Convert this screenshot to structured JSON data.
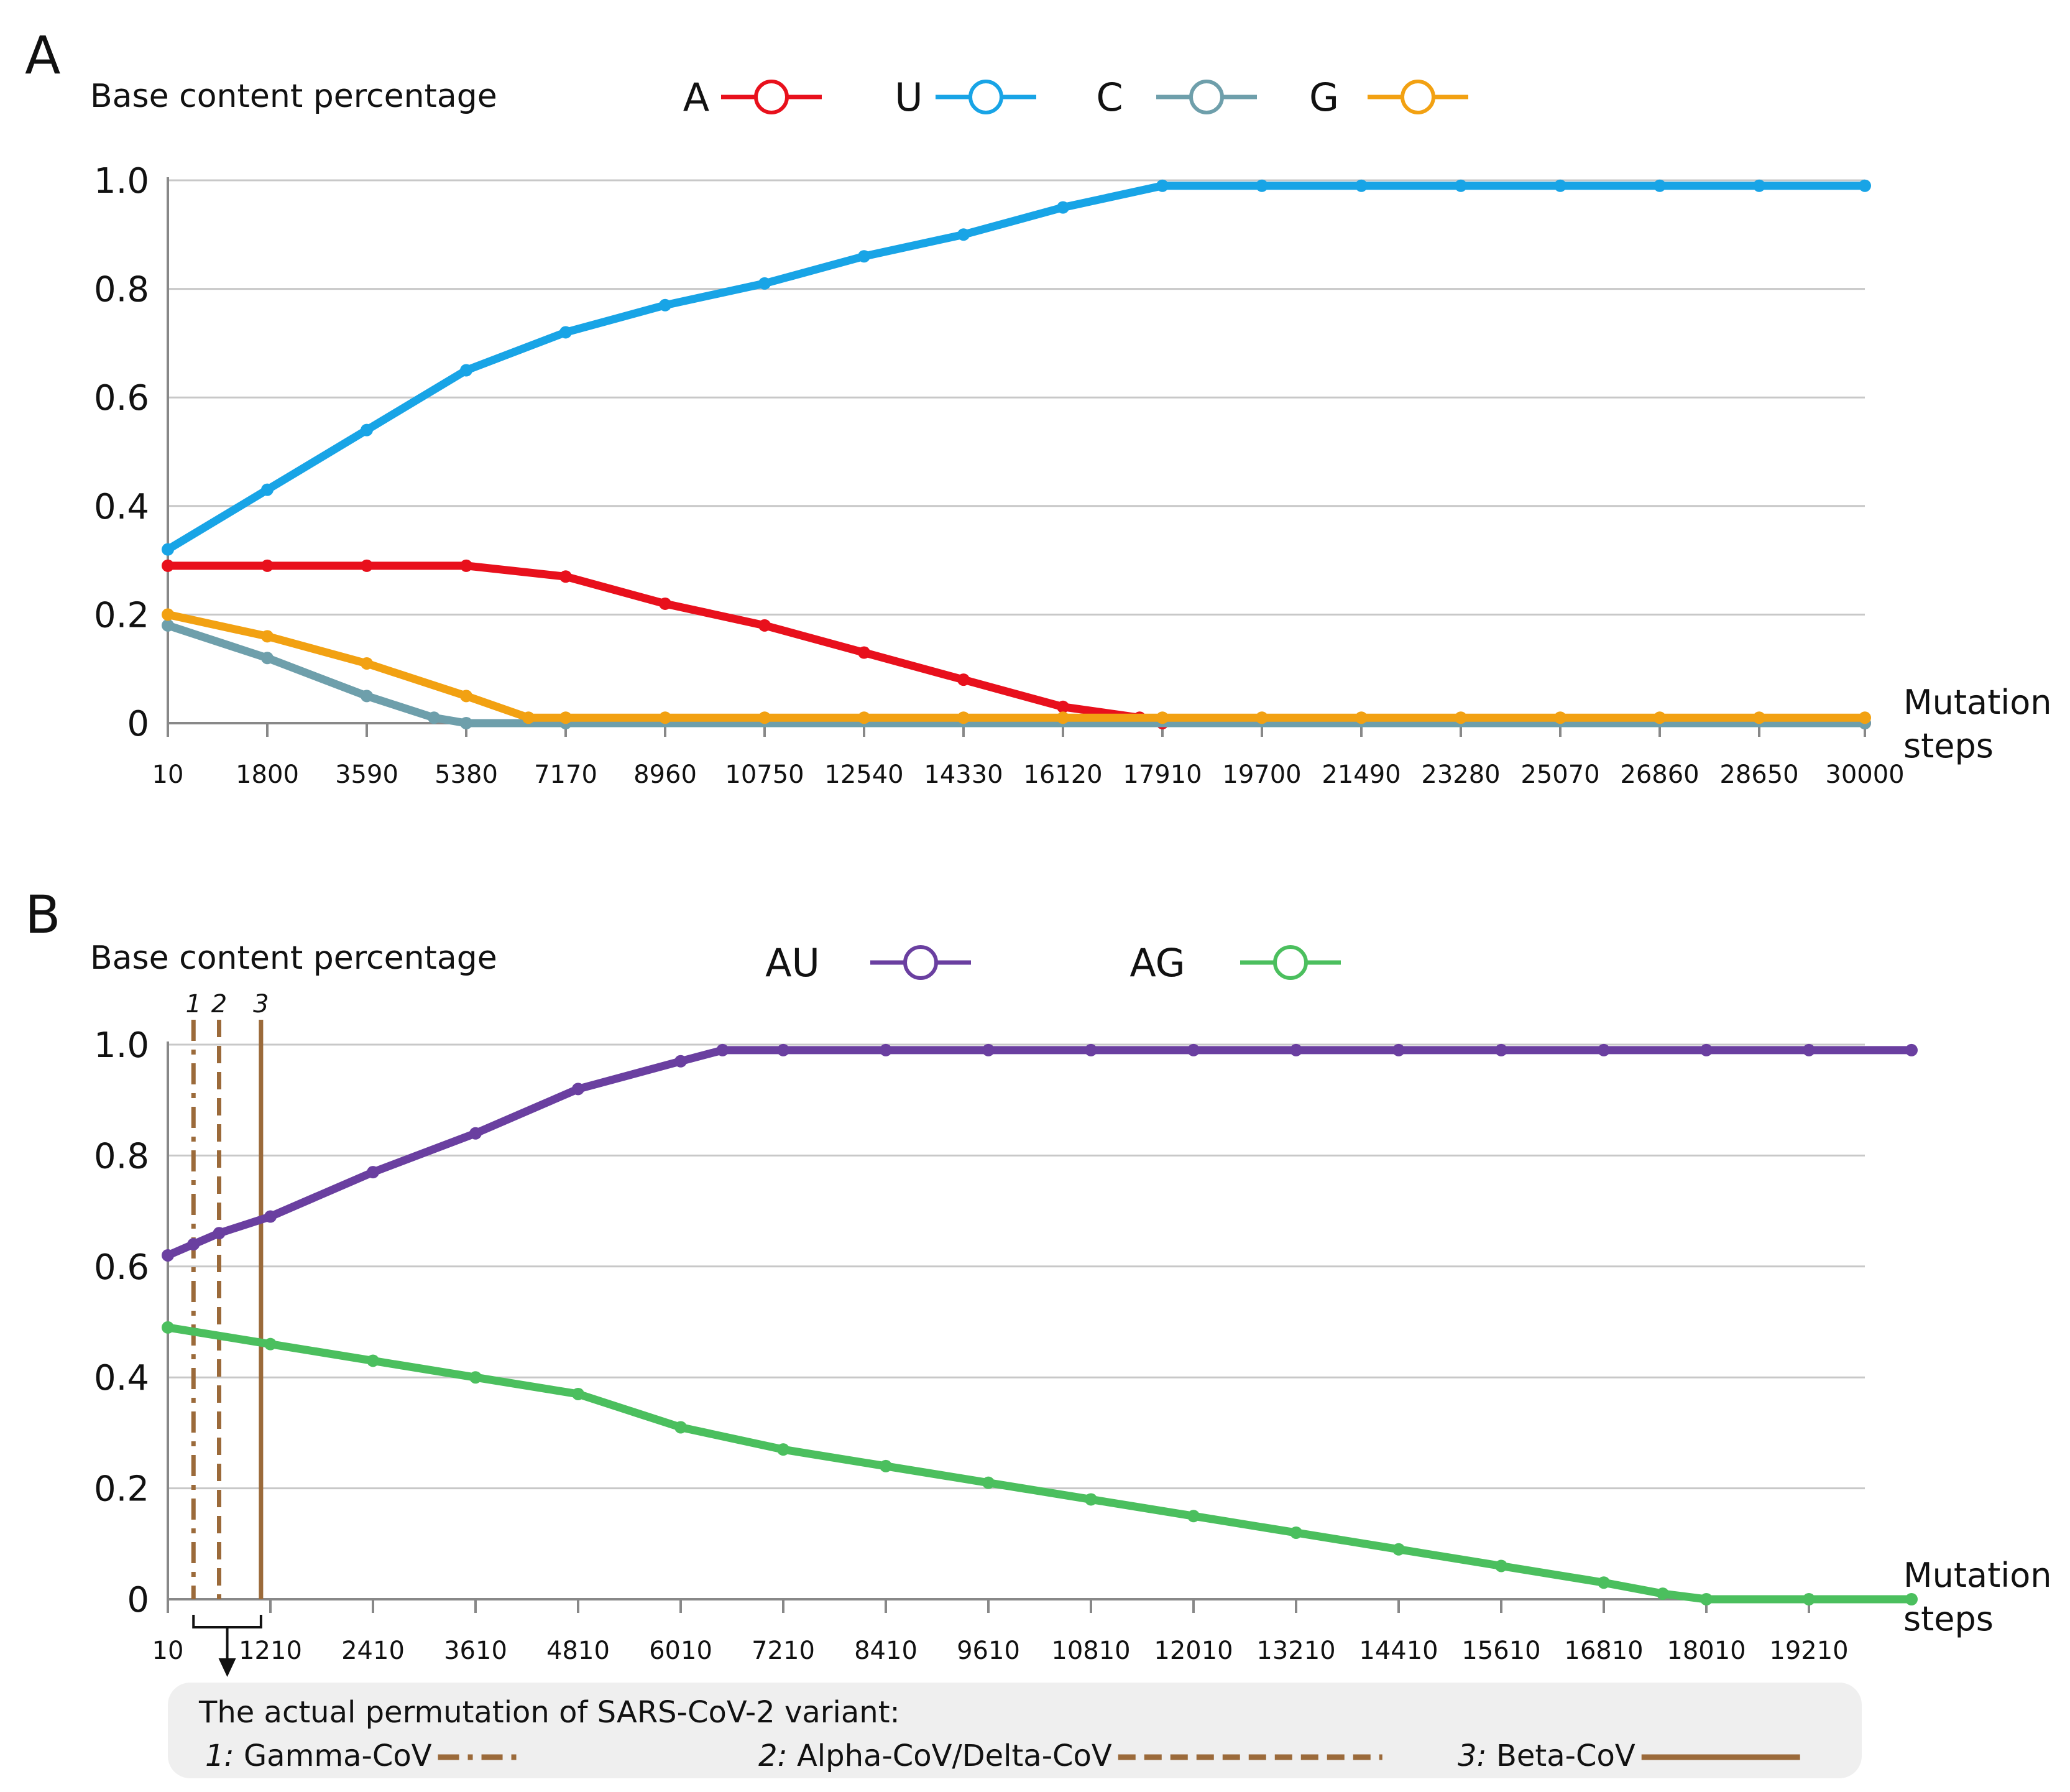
{
  "chart_data": [
    {
      "panel": "A",
      "type": "line",
      "ylabel": "Base content percentage",
      "xlabel": "Mutation steps",
      "ylim": [
        0,
        1.0
      ],
      "xlim": [
        10,
        30000
      ],
      "y_ticks": [
        "0",
        "0.2",
        "0.4",
        "0.6",
        "0.8",
        "1.0"
      ],
      "x_ticks": [
        "10",
        "1800",
        "3590",
        "5380",
        "7170",
        "8960",
        "10750",
        "12540",
        "14330",
        "16120",
        "17910",
        "19700",
        "21490",
        "23280",
        "25070",
        "26860",
        "28650",
        "30000"
      ],
      "grid": "horizontal",
      "legend_position": "top",
      "series": [
        {
          "name": "A",
          "color": "#e8101c",
          "x": [
            10,
            1800,
            3590,
            5380,
            7170,
            8960,
            10750,
            12540,
            14330,
            16120,
            17500,
            17910,
            30000
          ],
          "y": [
            0.29,
            0.29,
            0.29,
            0.29,
            0.27,
            0.22,
            0.18,
            0.13,
            0.08,
            0.03,
            0.01,
            0.0,
            0.0
          ]
        },
        {
          "name": "U",
          "color": "#18a4e6",
          "x": [
            10,
            1800,
            3590,
            5380,
            7170,
            8960,
            10750,
            12540,
            14330,
            16120,
            17910,
            19700,
            21490,
            23280,
            25070,
            26860,
            28650,
            30000
          ],
          "y": [
            0.32,
            0.43,
            0.54,
            0.65,
            0.72,
            0.77,
            0.81,
            0.86,
            0.9,
            0.95,
            0.99,
            0.99,
            0.99,
            0.99,
            0.99,
            0.99,
            0.99,
            0.99
          ]
        },
        {
          "name": "C",
          "color": "#6e9fab",
          "x": [
            10,
            1800,
            3590,
            4800,
            5380,
            7170,
            30000
          ],
          "y": [
            0.18,
            0.12,
            0.05,
            0.01,
            0.0,
            0.0,
            0.0
          ]
        },
        {
          "name": "G",
          "color": "#f2a112",
          "x": [
            10,
            1800,
            3590,
            5380,
            6500,
            7170,
            8960,
            10750,
            12540,
            14330,
            16120,
            17910,
            19700,
            21490,
            23280,
            25070,
            26860,
            28650,
            30000
          ],
          "y": [
            0.2,
            0.16,
            0.11,
            0.05,
            0.01,
            0.01,
            0.01,
            0.01,
            0.01,
            0.01,
            0.01,
            0.01,
            0.01,
            0.01,
            0.01,
            0.01,
            0.01,
            0.01,
            0.01
          ]
        }
      ]
    },
    {
      "panel": "B",
      "type": "line",
      "ylabel": "Base content percentage",
      "xlabel": "Mutation steps",
      "ylim": [
        0,
        1.0
      ],
      "xlim": [
        10,
        20410
      ],
      "y_ticks": [
        "0",
        "0.2",
        "0.4",
        "0.6",
        "0.8",
        "1.0"
      ],
      "x_ticks": [
        "10",
        "1210",
        "2410",
        "3610",
        "4810",
        "6010",
        "7210",
        "8410",
        "9610",
        "10810",
        "12010",
        "13210",
        "14410",
        "15610",
        "16810",
        "18010",
        "19210"
      ],
      "grid": "horizontal",
      "legend_position": "top",
      "series": [
        {
          "name": "AU",
          "color": "#6a3fa0",
          "x": [
            10,
            310,
            610,
            1210,
            2410,
            3610,
            4810,
            6010,
            6500,
            7210,
            8410,
            9610,
            10810,
            12010,
            13210,
            14410,
            15610,
            16810,
            18010,
            19210,
            20410
          ],
          "y": [
            0.62,
            0.64,
            0.66,
            0.69,
            0.77,
            0.84,
            0.92,
            0.97,
            0.99,
            0.99,
            0.99,
            0.99,
            0.99,
            0.99,
            0.99,
            0.99,
            0.99,
            0.99,
            0.99,
            0.99,
            0.99
          ]
        },
        {
          "name": "AG",
          "color": "#4bbf5e",
          "x": [
            10,
            1210,
            2410,
            3610,
            4810,
            6010,
            7210,
            8410,
            9610,
            10810,
            12010,
            13210,
            14410,
            15610,
            16810,
            17500,
            18010,
            19210,
            20410
          ],
          "y": [
            0.49,
            0.46,
            0.43,
            0.4,
            0.37,
            0.31,
            0.27,
            0.24,
            0.21,
            0.18,
            0.15,
            0.12,
            0.09,
            0.06,
            0.03,
            0.01,
            0.0,
            0.0,
            0.0
          ]
        }
      ],
      "variant_lines": [
        {
          "id": "1",
          "x": 310,
          "style": "dashdot",
          "color": "#9b6a3a"
        },
        {
          "id": "2",
          "x": 610,
          "style": "dashed",
          "color": "#9b6a3a"
        },
        {
          "id": "3",
          "x": 1100,
          "style": "solid",
          "color": "#9b6a3a"
        }
      ],
      "caption": {
        "title": "The actual permutation of SARS-CoV-2 variant:",
        "items": [
          {
            "num": "1:",
            "label": "Gamma-CoV",
            "style": "dashdot"
          },
          {
            "num": "2:",
            "label": "Alpha-CoV/Delta-CoV",
            "style": "dashed"
          },
          {
            "num": "3:",
            "label": "Beta-CoV",
            "style": "solid"
          }
        ]
      }
    }
  ]
}
